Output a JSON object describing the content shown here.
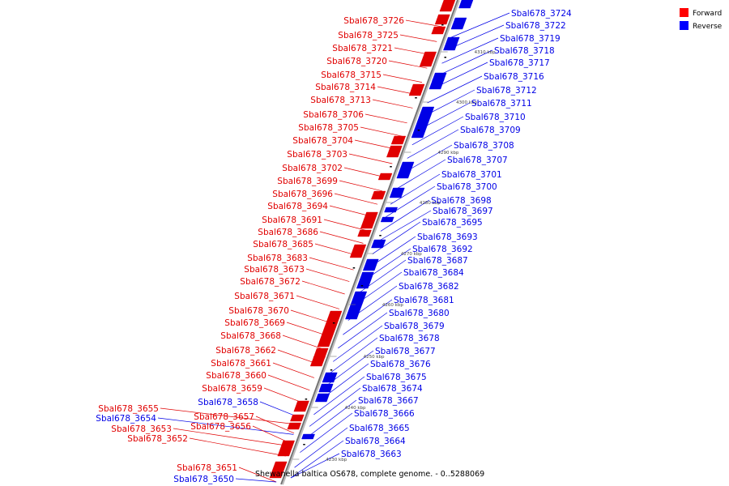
{
  "caption": "Shewanella baltica OS678, complete genome. - 0..5288069",
  "legend": [
    {
      "label": "Forward",
      "color": "#ff0000"
    },
    {
      "label": "Reverse",
      "color": "#0000ff"
    }
  ],
  "colors": {
    "forward": "#e00000",
    "reverse": "#0000e6",
    "backbone": "#888888"
  },
  "ticks": [
    "4230 kbp",
    "4240 kbp",
    "4250 kbp",
    "4260 kbp",
    "4270 kbp",
    "4280 kbp",
    "4290 kbp",
    "4300 kbp",
    "4310 kbp"
  ],
  "left_labels": [
    {
      "text": "Sbal678_3726",
      "color": "forward"
    },
    {
      "text": "Sbal678_3725",
      "color": "forward"
    },
    {
      "text": "Sbal678_3721",
      "color": "forward"
    },
    {
      "text": "Sbal678_3720",
      "color": "forward"
    },
    {
      "text": "Sbal678_3715",
      "color": "forward"
    },
    {
      "text": "Sbal678_3714",
      "color": "forward"
    },
    {
      "text": "Sbal678_3713",
      "color": "forward"
    },
    {
      "text": "Sbal678_3706",
      "color": "forward"
    },
    {
      "text": "Sbal678_3705",
      "color": "forward"
    },
    {
      "text": "Sbal678_3704",
      "color": "forward"
    },
    {
      "text": "Sbal678_3703",
      "color": "forward"
    },
    {
      "text": "Sbal678_3702",
      "color": "forward"
    },
    {
      "text": "Sbal678_3699",
      "color": "forward"
    },
    {
      "text": "Sbal678_3696",
      "color": "forward"
    },
    {
      "text": "Sbal678_3694",
      "color": "forward"
    },
    {
      "text": "Sbal678_3691",
      "color": "forward"
    },
    {
      "text": "Sbal678_3686",
      "color": "forward"
    },
    {
      "text": "Sbal678_3685",
      "color": "forward"
    },
    {
      "text": "Sbal678_3683",
      "color": "forward"
    },
    {
      "text": "Sbal678_3673",
      "color": "forward"
    },
    {
      "text": "Sbal678_3672",
      "color": "forward"
    },
    {
      "text": "Sbal678_3671",
      "color": "forward"
    },
    {
      "text": "Sbal678_3670",
      "color": "forward"
    },
    {
      "text": "Sbal678_3669",
      "color": "forward"
    },
    {
      "text": "Sbal678_3668",
      "color": "forward"
    },
    {
      "text": "Sbal678_3662",
      "color": "forward"
    },
    {
      "text": "Sbal678_3661",
      "color": "forward"
    },
    {
      "text": "Sbal678_3660",
      "color": "forward"
    },
    {
      "text": "Sbal678_3659",
      "color": "forward"
    },
    {
      "text": "Sbal678_3658",
      "color": "reverse"
    },
    {
      "text": "Sbal678_3655",
      "color": "forward"
    },
    {
      "text": "Sbal678_3654",
      "color": "reverse"
    },
    {
      "text": "Sbal678_3657",
      "color": "forward"
    },
    {
      "text": "Sbal678_3656",
      "color": "forward"
    },
    {
      "text": "Sbal678_3653",
      "color": "forward"
    },
    {
      "text": "Sbal678_3652",
      "color": "forward"
    },
    {
      "text": "Sbal678_3651",
      "color": "forward"
    },
    {
      "text": "Sbal678_3650",
      "color": "reverse"
    }
  ],
  "right_labels": [
    {
      "text": "Sbal678_3724"
    },
    {
      "text": "Sbal678_3722"
    },
    {
      "text": "Sbal678_3719"
    },
    {
      "text": "Sbal678_3718"
    },
    {
      "text": "Sbal678_3717"
    },
    {
      "text": "Sbal678_3716"
    },
    {
      "text": "Sbal678_3712"
    },
    {
      "text": "Sbal678_3711"
    },
    {
      "text": "Sbal678_3710"
    },
    {
      "text": "Sbal678_3709"
    },
    {
      "text": "Sbal678_3708"
    },
    {
      "text": "Sbal678_3707"
    },
    {
      "text": "Sbal678_3701"
    },
    {
      "text": "Sbal678_3700"
    },
    {
      "text": "Sbal678_3698"
    },
    {
      "text": "Sbal678_3697"
    },
    {
      "text": "Sbal678_3695"
    },
    {
      "text": "Sbal678_3693"
    },
    {
      "text": "Sbal678_3692"
    },
    {
      "text": "Sbal678_3687"
    },
    {
      "text": "Sbal678_3684"
    },
    {
      "text": "Sbal678_3682"
    },
    {
      "text": "Sbal678_3681"
    },
    {
      "text": "Sbal678_3680"
    },
    {
      "text": "Sbal678_3679"
    },
    {
      "text": "Sbal678_3678"
    },
    {
      "text": "Sbal678_3677"
    },
    {
      "text": "Sbal678_3676"
    },
    {
      "text": "Sbal678_3675"
    },
    {
      "text": "Sbal678_3674"
    },
    {
      "text": "Sbal678_3667"
    },
    {
      "text": "Sbal678_3666"
    },
    {
      "text": "Sbal678_3665"
    },
    {
      "text": "Sbal678_3664"
    },
    {
      "text": "Sbal678_3663"
    }
  ]
}
